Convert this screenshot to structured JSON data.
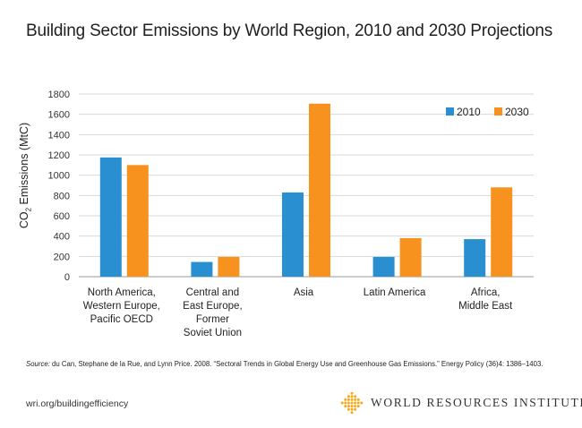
{
  "chart_data": {
    "type": "bar",
    "title": "Building Sector Emissions by World Region, 2010 and 2030 Projections",
    "ylabel_prefix": "CO",
    "ylabel_sub": "2",
    "ylabel_suffix": " Emissions (MtC)",
    "xlabel": "",
    "ylim": [
      0,
      1800
    ],
    "yticks": [
      "0",
      "200",
      "400",
      "600",
      "800",
      "1000",
      "1200",
      "1400",
      "1600",
      "1800"
    ],
    "grid": true,
    "legend_position": "top-right",
    "categories": [
      [
        "North America,",
        "Western Europe,",
        "Pacific OECD"
      ],
      [
        "Central and",
        "East Europe,",
        "Former",
        "Soviet Union"
      ],
      [
        "Asia"
      ],
      [
        "Latin America"
      ],
      [
        "Africa,",
        "Middle East"
      ]
    ],
    "series": [
      {
        "name": "2010",
        "color": "#2a8fd0",
        "values": [
          1175,
          145,
          830,
          195,
          370
        ]
      },
      {
        "name": "2030",
        "color": "#f7921e",
        "values": [
          1100,
          195,
          1705,
          380,
          880
        ]
      }
    ]
  },
  "source": {
    "label": "Source:",
    "text": " du Can, Stephane de la Rue, and Lynn Price. 2008. “Sectoral Trends in Global Energy Use and Greenhouse Gas Emissions.” Energy Policy (36)4: 1386–1403."
  },
  "footer": {
    "url": "wri.org/buildingefficiency",
    "org_name": "WORLD RESOURCES INSTITUTE",
    "logo_icon": "wri-diamond-logo-icon",
    "logo_color": "#f7a81b"
  }
}
